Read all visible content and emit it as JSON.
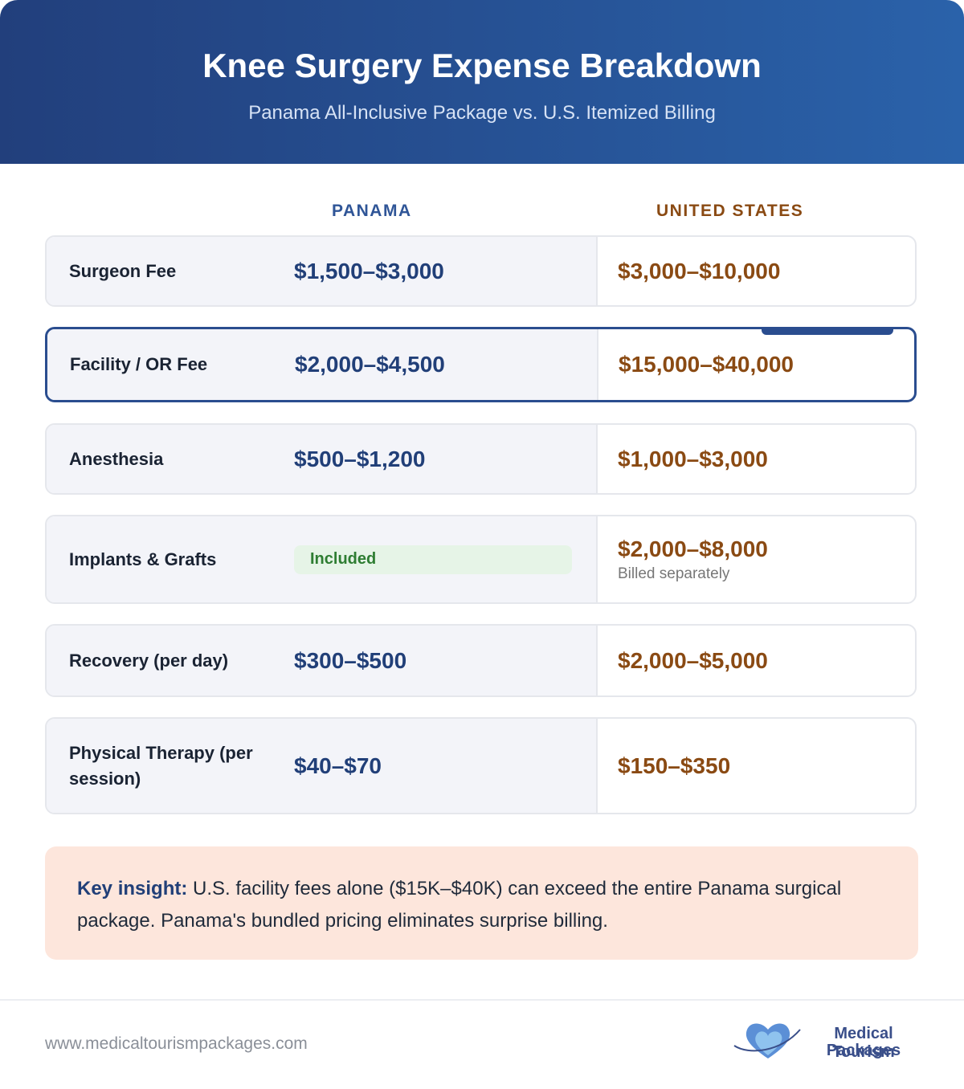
{
  "header": {
    "title": "Knee Surgery Expense Breakdown",
    "subtitle": "Panama All-Inclusive Package vs. U.S. Itemized Billing"
  },
  "columns": {
    "panama": "PANAMA",
    "us": "UNITED STATES"
  },
  "rows": [
    {
      "label": "Surgeon Fee",
      "panama": "$1,500–$3,000",
      "us": "$3,000–$10,000"
    },
    {
      "label": "Facility / OR Fee",
      "panama": "$2,000–$4,500",
      "us": "$15,000–$40,000"
    },
    {
      "label": "Anesthesia",
      "panama": "$500–$1,200",
      "us": "$1,000–$3,000"
    },
    {
      "label": "Implants & Grafts",
      "panama": "Included",
      "us": "$2,000–$8,000",
      "note": "Billed separately"
    },
    {
      "label": "Recovery (per day)",
      "panama": "$300–$500",
      "us": "$2,000–$5,000"
    },
    {
      "label": "Physical Therapy (per session)",
      "panama": "$40–$70",
      "us": "$150–$350"
    }
  ],
  "insight": {
    "lead": "Key insight:",
    "text": "U.S. facility fees alone ($15K–$40K) can exceed the entire Panama surgical package. Panama's bundled pricing eliminates surprise billing."
  },
  "footer": {
    "url": "www.medicaltourismpackages.com",
    "logo_line1": "Medical Tourism",
    "logo_line2": "Packages"
  }
}
